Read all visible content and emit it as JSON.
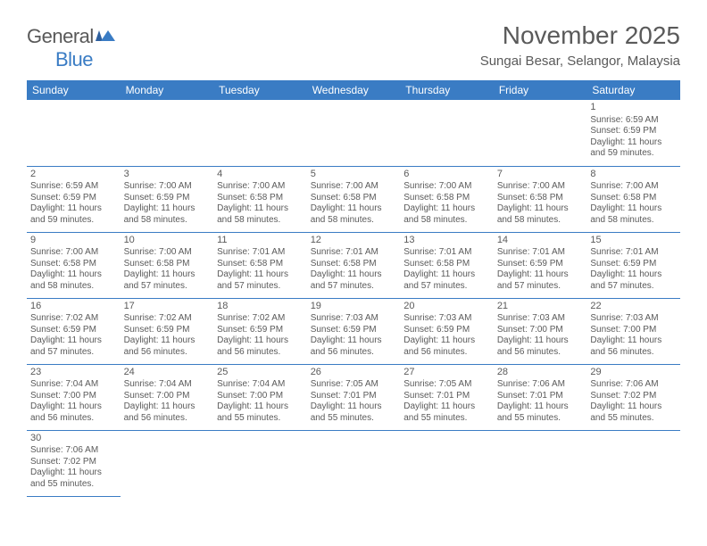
{
  "logo": {
    "general": "General",
    "blue": "Blue"
  },
  "title": "November 2025",
  "location": "Sungai Besar, Selangor, Malaysia",
  "colors": {
    "header_bg": "#3a7cc4",
    "text": "#5a5a5a",
    "background": "#ffffff"
  },
  "dayNames": [
    "Sunday",
    "Monday",
    "Tuesday",
    "Wednesday",
    "Thursday",
    "Friday",
    "Saturday"
  ],
  "startOffset": 6,
  "days": [
    {
      "n": 1,
      "sr": "6:59 AM",
      "ss": "6:59 PM",
      "dl": "11 hours and 59 minutes."
    },
    {
      "n": 2,
      "sr": "6:59 AM",
      "ss": "6:59 PM",
      "dl": "11 hours and 59 minutes."
    },
    {
      "n": 3,
      "sr": "7:00 AM",
      "ss": "6:59 PM",
      "dl": "11 hours and 58 minutes."
    },
    {
      "n": 4,
      "sr": "7:00 AM",
      "ss": "6:58 PM",
      "dl": "11 hours and 58 minutes."
    },
    {
      "n": 5,
      "sr": "7:00 AM",
      "ss": "6:58 PM",
      "dl": "11 hours and 58 minutes."
    },
    {
      "n": 6,
      "sr": "7:00 AM",
      "ss": "6:58 PM",
      "dl": "11 hours and 58 minutes."
    },
    {
      "n": 7,
      "sr": "7:00 AM",
      "ss": "6:58 PM",
      "dl": "11 hours and 58 minutes."
    },
    {
      "n": 8,
      "sr": "7:00 AM",
      "ss": "6:58 PM",
      "dl": "11 hours and 58 minutes."
    },
    {
      "n": 9,
      "sr": "7:00 AM",
      "ss": "6:58 PM",
      "dl": "11 hours and 58 minutes."
    },
    {
      "n": 10,
      "sr": "7:00 AM",
      "ss": "6:58 PM",
      "dl": "11 hours and 57 minutes."
    },
    {
      "n": 11,
      "sr": "7:01 AM",
      "ss": "6:58 PM",
      "dl": "11 hours and 57 minutes."
    },
    {
      "n": 12,
      "sr": "7:01 AM",
      "ss": "6:58 PM",
      "dl": "11 hours and 57 minutes."
    },
    {
      "n": 13,
      "sr": "7:01 AM",
      "ss": "6:58 PM",
      "dl": "11 hours and 57 minutes."
    },
    {
      "n": 14,
      "sr": "7:01 AM",
      "ss": "6:59 PM",
      "dl": "11 hours and 57 minutes."
    },
    {
      "n": 15,
      "sr": "7:01 AM",
      "ss": "6:59 PM",
      "dl": "11 hours and 57 minutes."
    },
    {
      "n": 16,
      "sr": "7:02 AM",
      "ss": "6:59 PM",
      "dl": "11 hours and 57 minutes."
    },
    {
      "n": 17,
      "sr": "7:02 AM",
      "ss": "6:59 PM",
      "dl": "11 hours and 56 minutes."
    },
    {
      "n": 18,
      "sr": "7:02 AM",
      "ss": "6:59 PM",
      "dl": "11 hours and 56 minutes."
    },
    {
      "n": 19,
      "sr": "7:03 AM",
      "ss": "6:59 PM",
      "dl": "11 hours and 56 minutes."
    },
    {
      "n": 20,
      "sr": "7:03 AM",
      "ss": "6:59 PM",
      "dl": "11 hours and 56 minutes."
    },
    {
      "n": 21,
      "sr": "7:03 AM",
      "ss": "7:00 PM",
      "dl": "11 hours and 56 minutes."
    },
    {
      "n": 22,
      "sr": "7:03 AM",
      "ss": "7:00 PM",
      "dl": "11 hours and 56 minutes."
    },
    {
      "n": 23,
      "sr": "7:04 AM",
      "ss": "7:00 PM",
      "dl": "11 hours and 56 minutes."
    },
    {
      "n": 24,
      "sr": "7:04 AM",
      "ss": "7:00 PM",
      "dl": "11 hours and 56 minutes."
    },
    {
      "n": 25,
      "sr": "7:04 AM",
      "ss": "7:00 PM",
      "dl": "11 hours and 55 minutes."
    },
    {
      "n": 26,
      "sr": "7:05 AM",
      "ss": "7:01 PM",
      "dl": "11 hours and 55 minutes."
    },
    {
      "n": 27,
      "sr": "7:05 AM",
      "ss": "7:01 PM",
      "dl": "11 hours and 55 minutes."
    },
    {
      "n": 28,
      "sr": "7:06 AM",
      "ss": "7:01 PM",
      "dl": "11 hours and 55 minutes."
    },
    {
      "n": 29,
      "sr": "7:06 AM",
      "ss": "7:02 PM",
      "dl": "11 hours and 55 minutes."
    },
    {
      "n": 30,
      "sr": "7:06 AM",
      "ss": "7:02 PM",
      "dl": "11 hours and 55 minutes."
    }
  ],
  "labels": {
    "sunrise": "Sunrise: ",
    "sunset": "Sunset: ",
    "daylight": "Daylight: "
  }
}
